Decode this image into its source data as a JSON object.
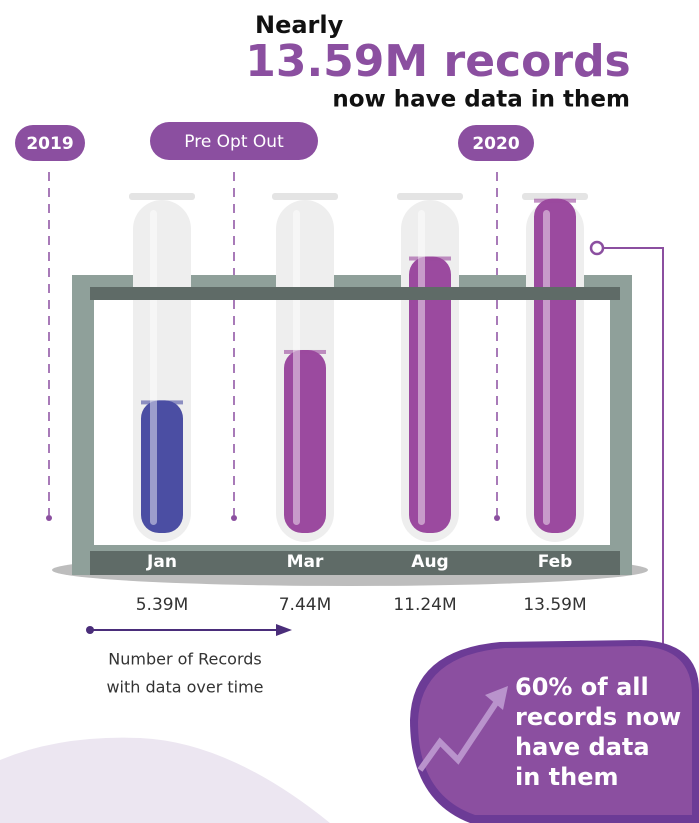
{
  "chart_data": {
    "type": "tube",
    "title_prefix": "Nearly",
    "title": "13.59M records",
    "title_suffix": "now have data in them",
    "annotations": [
      "2019",
      "Pre Opt Out",
      "2020"
    ],
    "categories": [
      "Jan",
      "Mar",
      "Aug",
      "Feb"
    ],
    "values": [
      5.39,
      7.44,
      11.24,
      13.59
    ],
    "value_labels": [
      "5.39M",
      "7.44M",
      "11.24M",
      "13.59M"
    ],
    "colors": [
      "#4b4ea3",
      "#9b4a9f",
      "#9b4a9f",
      "#9b4a9f"
    ],
    "caption": [
      "Number of Records",
      "with data over time"
    ],
    "callout": [
      "60% of all",
      "records now",
      "have data",
      "in them"
    ]
  }
}
